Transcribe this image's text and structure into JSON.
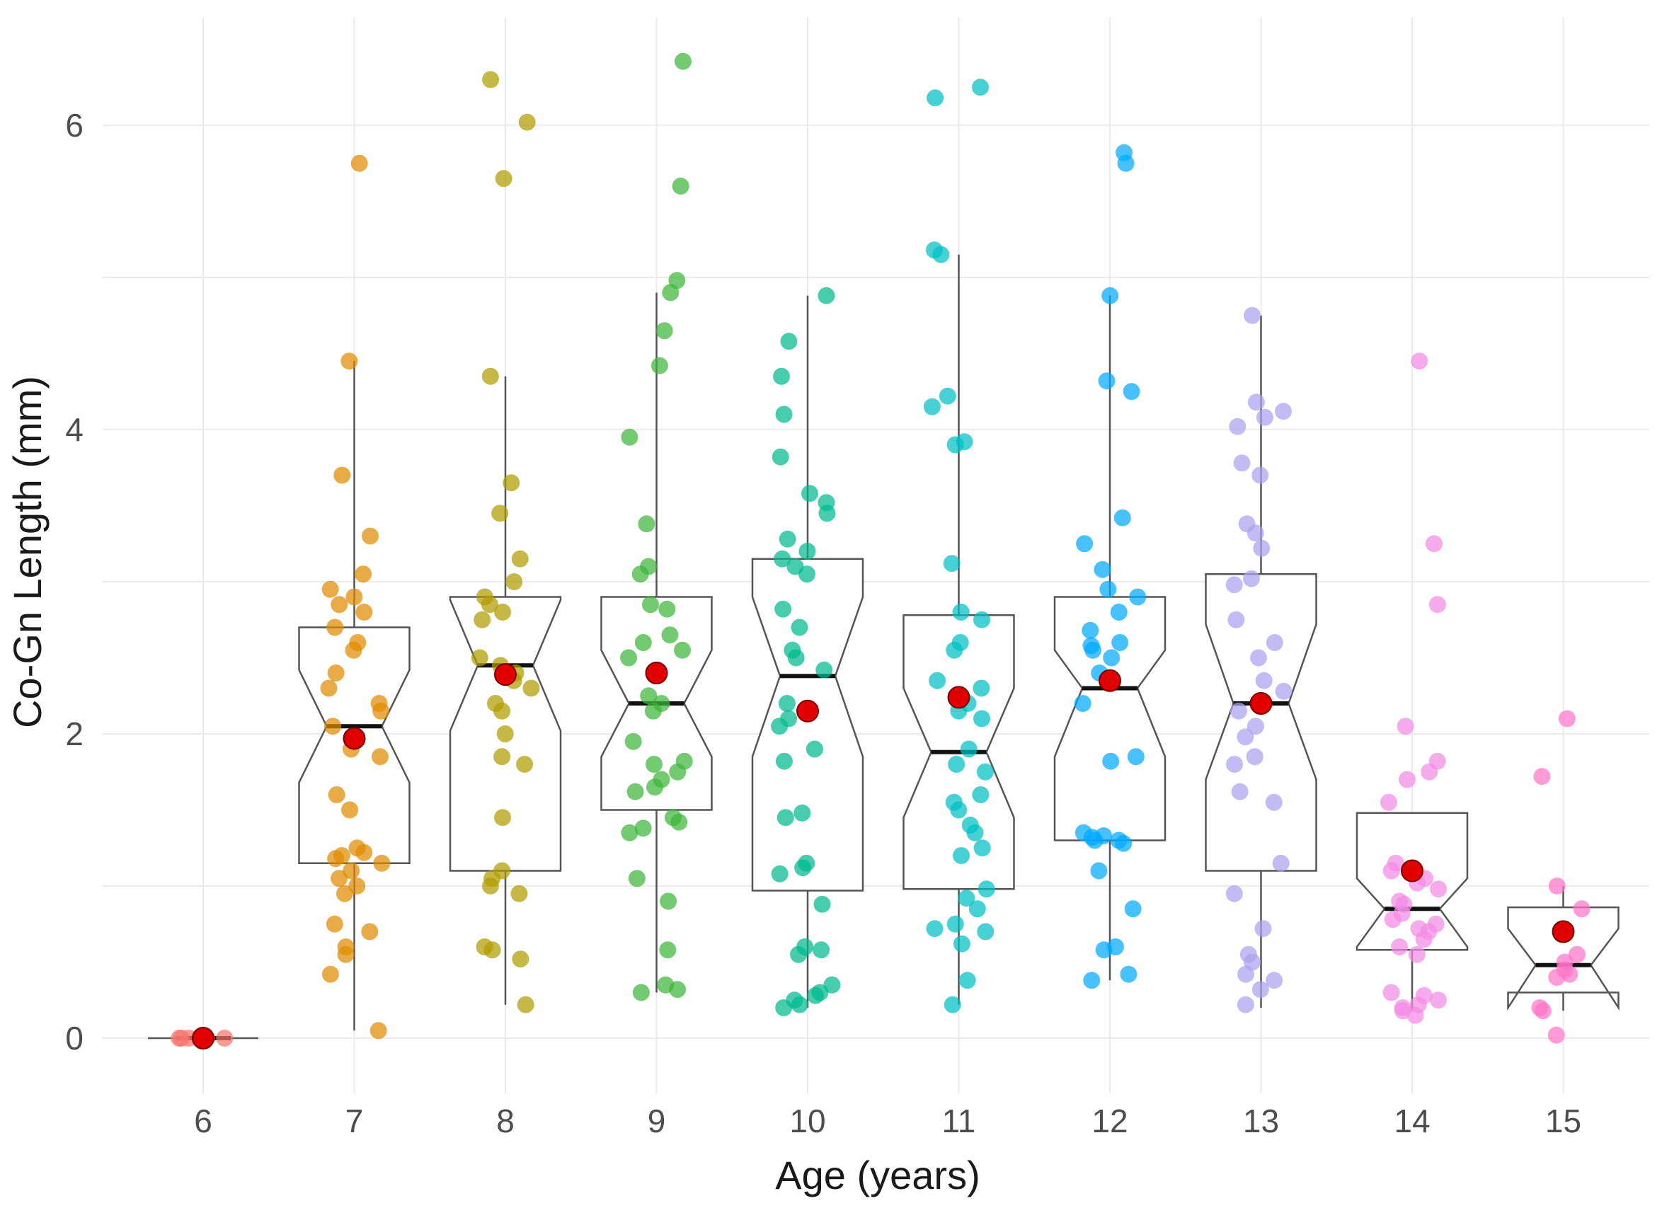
{
  "chart_data": {
    "type": "boxplot",
    "title": "",
    "xlabel": "Age (years)",
    "ylabel": "Co-Gn Length (mm)",
    "ylim": [
      -0.35,
      6.6
    ],
    "yticks": [
      0,
      2,
      4,
      6
    ],
    "notched": true,
    "grid": true,
    "legend": "none",
    "mean_marker_color": "#e00000",
    "groups": [
      {
        "label": "6",
        "color": "#f8766d",
        "q1": 0.0,
        "median": 0.0,
        "q3": 0.0,
        "whisker_low": 0.0,
        "whisker_high": 0.0,
        "notch_low": 0.0,
        "notch_high": 0.0,
        "mean": 0.0,
        "points": [
          0.0,
          0.0,
          0.0,
          0.0,
          0.0,
          0.0,
          0.0,
          0.0
        ]
      },
      {
        "label": "7",
        "color": "#e08b00",
        "q1": 1.15,
        "median": 2.05,
        "q3": 2.7,
        "whisker_low": 0.05,
        "whisker_high": 4.45,
        "notch_low": 1.68,
        "notch_high": 2.42,
        "mean": 1.97,
        "points": [
          5.75,
          4.45,
          3.7,
          3.3,
          3.05,
          2.95,
          2.9,
          2.85,
          2.8,
          2.7,
          2.6,
          2.55,
          2.4,
          2.3,
          2.2,
          2.15,
          2.05,
          1.9,
          1.85,
          1.6,
          1.5,
          1.25,
          1.22,
          1.2,
          1.18,
          1.15,
          1.1,
          1.05,
          1.0,
          0.95,
          0.75,
          0.7,
          0.6,
          0.55,
          0.42,
          0.05
        ]
      },
      {
        "label": "8",
        "color": "#b09c00",
        "q1": 1.1,
        "median": 2.45,
        "q3": 2.9,
        "whisker_low": 0.22,
        "whisker_high": 4.35,
        "notch_low": 2.02,
        "notch_high": 2.88,
        "mean": 2.39,
        "points": [
          6.3,
          6.02,
          5.65,
          4.35,
          3.65,
          3.45,
          3.15,
          3.0,
          2.9,
          2.85,
          2.8,
          2.75,
          2.5,
          2.45,
          2.4,
          2.35,
          2.3,
          2.2,
          2.15,
          2.0,
          1.85,
          1.8,
          1.45,
          1.1,
          1.05,
          1.0,
          0.95,
          0.6,
          0.58,
          0.52,
          0.22
        ]
      },
      {
        "label": "9",
        "color": "#3db539",
        "q1": 1.5,
        "median": 2.2,
        "q3": 2.9,
        "whisker_low": 0.3,
        "whisker_high": 4.9,
        "notch_low": 1.85,
        "notch_high": 2.55,
        "mean": 2.4,
        "points": [
          6.42,
          5.6,
          4.98,
          4.9,
          4.65,
          4.42,
          3.95,
          3.38,
          3.1,
          3.05,
          2.85,
          2.82,
          2.65,
          2.6,
          2.55,
          2.5,
          2.25,
          2.2,
          2.15,
          1.95,
          1.82,
          1.8,
          1.75,
          1.7,
          1.65,
          1.62,
          1.45,
          1.42,
          1.38,
          1.35,
          1.05,
          0.9,
          0.58,
          0.35,
          0.32,
          0.3
        ]
      },
      {
        "label": "10",
        "color": "#00ba8e",
        "q1": 0.97,
        "median": 2.38,
        "q3": 3.15,
        "whisker_low": 0.2,
        "whisker_high": 4.88,
        "notch_low": 1.85,
        "notch_high": 2.9,
        "mean": 2.15,
        "points": [
          4.88,
          4.58,
          4.35,
          4.1,
          3.82,
          3.58,
          3.52,
          3.45,
          3.28,
          3.2,
          3.15,
          3.1,
          3.05,
          2.82,
          2.7,
          2.55,
          2.5,
          2.42,
          2.2,
          2.1,
          2.05,
          1.9,
          1.82,
          1.48,
          1.45,
          1.15,
          1.12,
          1.08,
          0.88,
          0.6,
          0.58,
          0.55,
          0.35,
          0.3,
          0.28,
          0.25,
          0.22,
          0.2
        ]
      },
      {
        "label": "11",
        "color": "#00bfc4",
        "q1": 0.98,
        "median": 1.88,
        "q3": 2.78,
        "whisker_low": 0.22,
        "whisker_high": 5.15,
        "notch_low": 1.45,
        "notch_high": 2.3,
        "mean": 2.24,
        "points": [
          6.25,
          6.18,
          5.18,
          5.15,
          4.22,
          4.15,
          3.92,
          3.9,
          3.12,
          2.8,
          2.75,
          2.6,
          2.55,
          2.35,
          2.3,
          2.2,
          2.15,
          2.1,
          1.9,
          1.8,
          1.75,
          1.6,
          1.55,
          1.5,
          1.4,
          1.35,
          1.25,
          1.2,
          0.98,
          0.92,
          0.85,
          0.75,
          0.72,
          0.7,
          0.62,
          0.38,
          0.22
        ]
      },
      {
        "label": "12",
        "color": "#00a9ff",
        "q1": 1.3,
        "median": 2.3,
        "q3": 2.9,
        "whisker_low": 0.38,
        "whisker_high": 4.88,
        "notch_low": 1.85,
        "notch_high": 2.55,
        "mean": 2.35,
        "points": [
          5.82,
          5.75,
          4.88,
          4.32,
          4.25,
          3.42,
          3.25,
          3.08,
          2.95,
          2.9,
          2.8,
          2.68,
          2.6,
          2.58,
          2.55,
          2.5,
          2.4,
          2.2,
          1.85,
          1.82,
          1.35,
          1.33,
          1.32,
          1.3,
          1.3,
          1.28,
          1.1,
          0.85,
          0.6,
          0.58,
          0.42,
          0.38
        ]
      },
      {
        "label": "13",
        "color": "#a9a4f0",
        "q1": 1.1,
        "median": 2.2,
        "q3": 3.05,
        "whisker_low": 0.2,
        "whisker_high": 4.75,
        "notch_low": 1.7,
        "notch_high": 2.72,
        "mean": 2.2,
        "points": [
          4.75,
          4.18,
          4.12,
          4.08,
          4.02,
          3.78,
          3.7,
          3.38,
          3.32,
          3.22,
          3.02,
          2.98,
          2.75,
          2.6,
          2.5,
          2.35,
          2.28,
          2.15,
          2.05,
          1.98,
          1.85,
          1.8,
          1.62,
          1.55,
          1.15,
          0.95,
          0.72,
          0.55,
          0.5,
          0.42,
          0.38,
          0.32,
          0.22
        ]
      },
      {
        "label": "14",
        "color": "#f38ae4",
        "q1": 0.58,
        "median": 0.85,
        "q3": 1.48,
        "whisker_low": 0.18,
        "whisker_high": 1.48,
        "notch_low": 0.6,
        "notch_high": 1.05,
        "mean": 1.1,
        "points": [
          4.45,
          3.25,
          2.85,
          2.05,
          1.82,
          1.75,
          1.7,
          1.55,
          1.15,
          1.1,
          1.05,
          1.02,
          0.98,
          0.9,
          0.88,
          0.82,
          0.78,
          0.75,
          0.72,
          0.7,
          0.65,
          0.6,
          0.55,
          0.3,
          0.28,
          0.25,
          0.22,
          0.2,
          0.18,
          0.15
        ]
      },
      {
        "label": "15",
        "color": "#ff74c8",
        "q1": 0.3,
        "median": 0.48,
        "q3": 0.86,
        "whisker_low": 0.18,
        "whisker_high": 1.0,
        "notch_low": 0.2,
        "notch_high": 0.72,
        "mean": 0.7,
        "points": [
          2.1,
          1.72,
          1.0,
          0.85,
          0.55,
          0.5,
          0.45,
          0.42,
          0.4,
          0.2,
          0.18,
          0.02
        ]
      }
    ]
  }
}
